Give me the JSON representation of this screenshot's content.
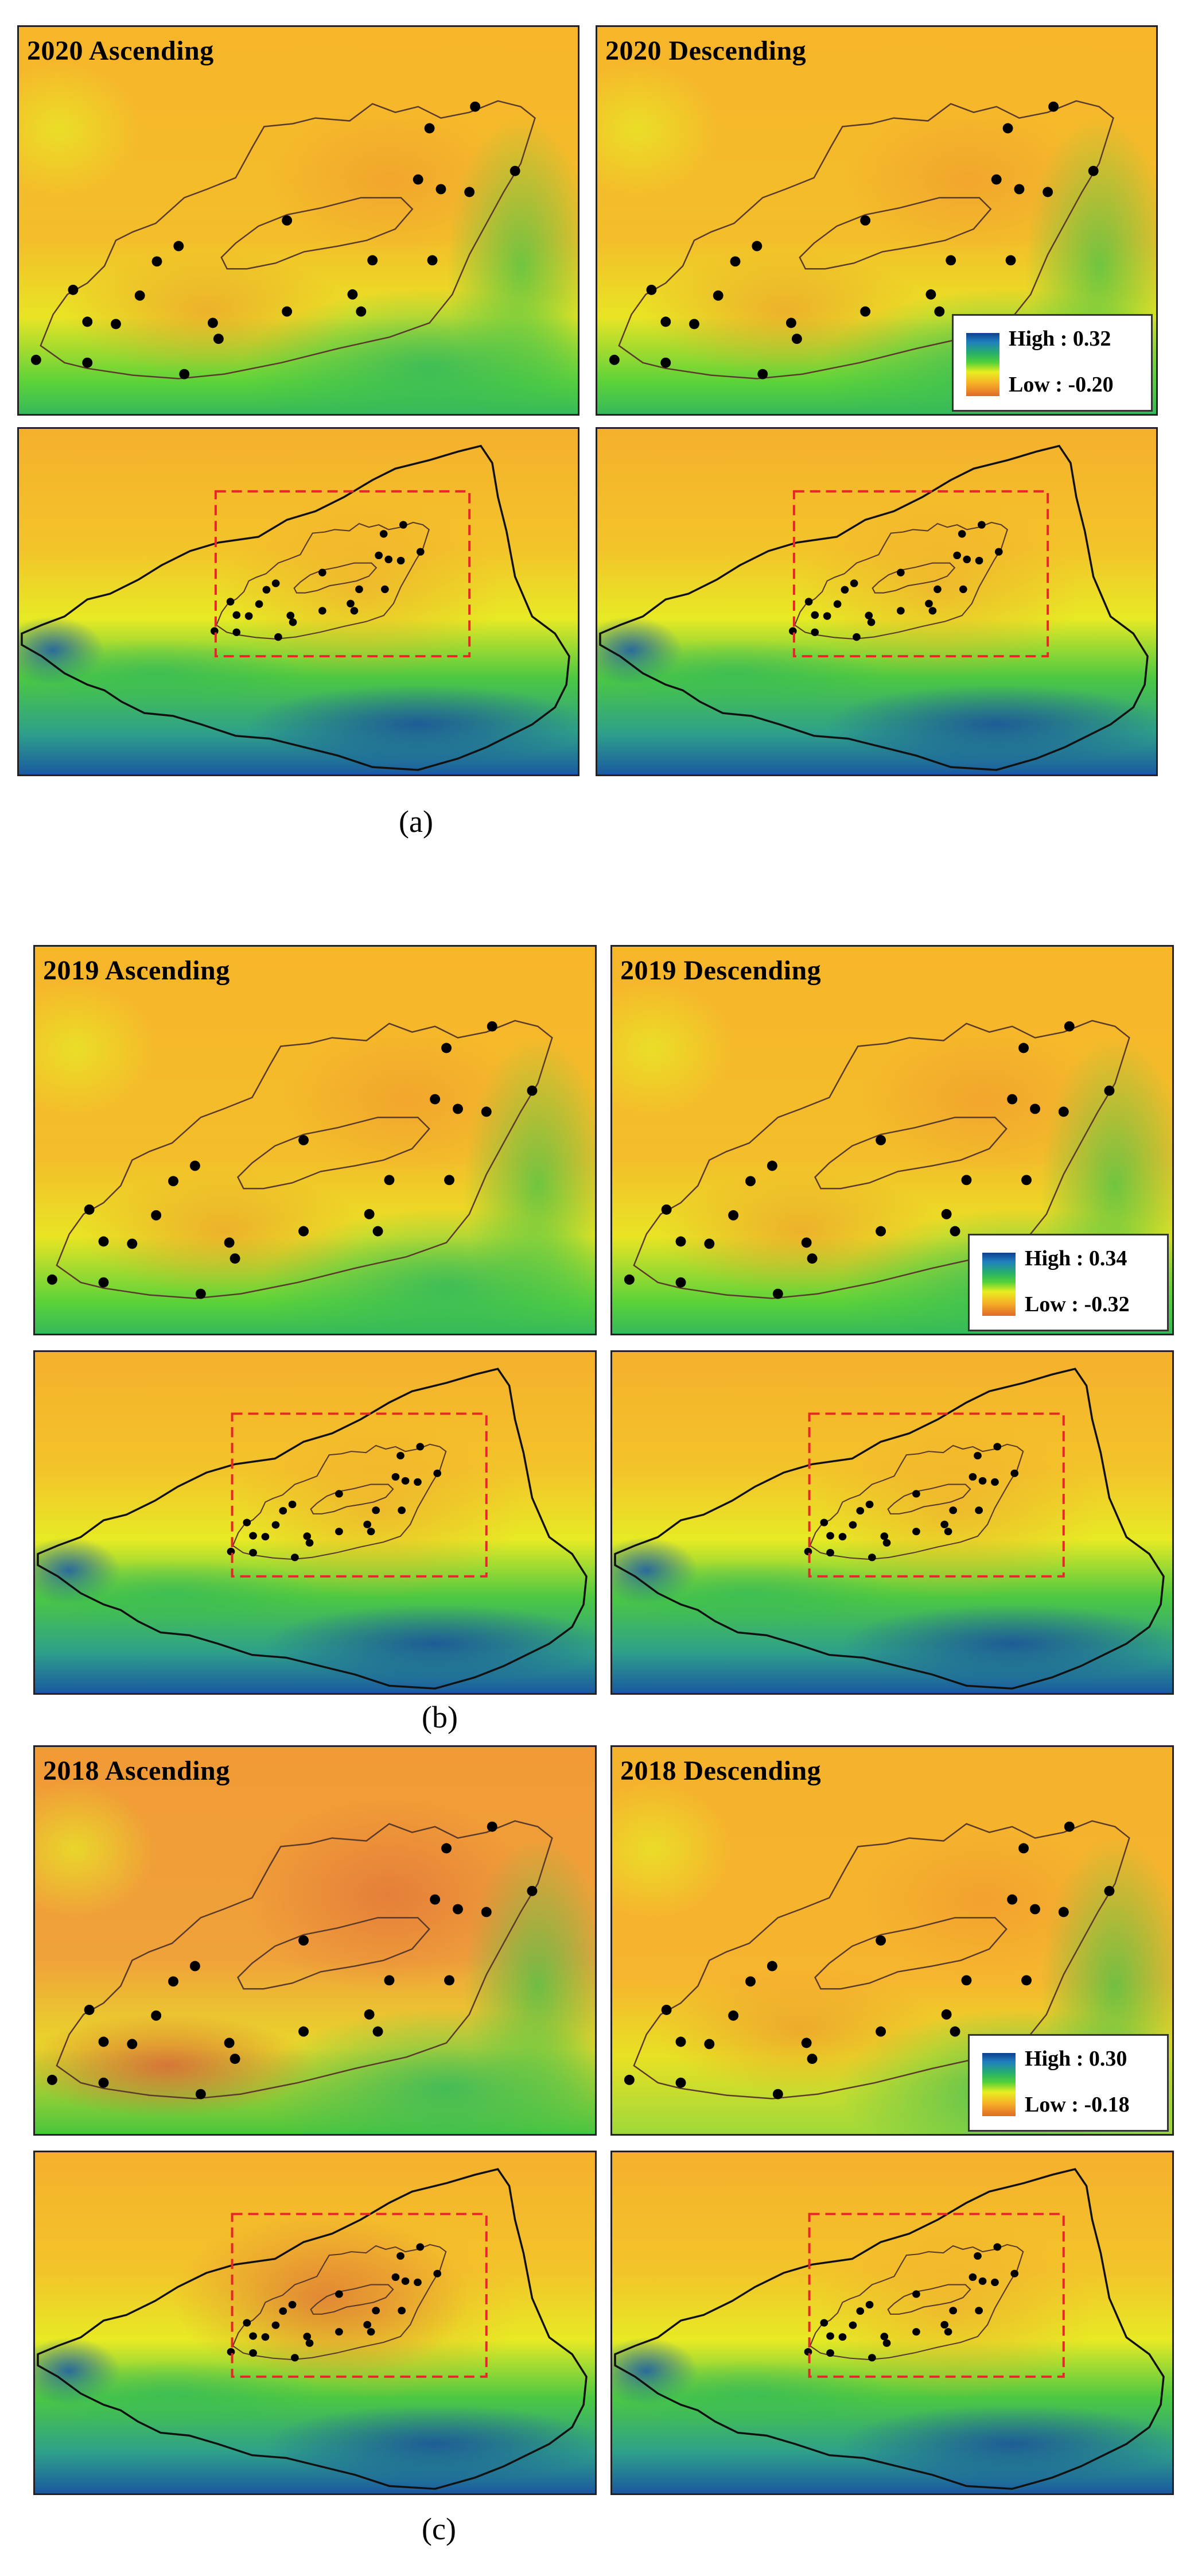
{
  "groups": [
    {
      "caption": "(a)",
      "legend": {
        "high": "High : 0.32",
        "low": "Low : -0.20"
      },
      "panels": [
        {
          "title": "2020 Ascending"
        },
        {
          "title": "2020 Descending"
        },
        {
          "title": ""
        },
        {
          "title": ""
        }
      ]
    },
    {
      "caption": "(b)",
      "legend": {
        "high": "High : 0.34",
        "low": "Low : -0.32"
      },
      "panels": [
        {
          "title": "2019 Ascending"
        },
        {
          "title": "2019 Descending"
        },
        {
          "title": ""
        },
        {
          "title": ""
        }
      ]
    },
    {
      "caption": "(c)",
      "legend": {
        "high": "High : 0.30",
        "low": "Low : -0.18"
      },
      "panels": [
        {
          "title": "2018 Ascending"
        },
        {
          "title": "2018 Descending"
        },
        {
          "title": ""
        },
        {
          "title": ""
        }
      ]
    }
  ],
  "colors": {
    "high": "#0d3f8f",
    "mid_green": "#3fc43a",
    "mid_yellow": "#e8ee20",
    "low": "#e06a28",
    "extent_box": "#e8252a",
    "boundary": "#111111",
    "point": "#000000"
  }
}
